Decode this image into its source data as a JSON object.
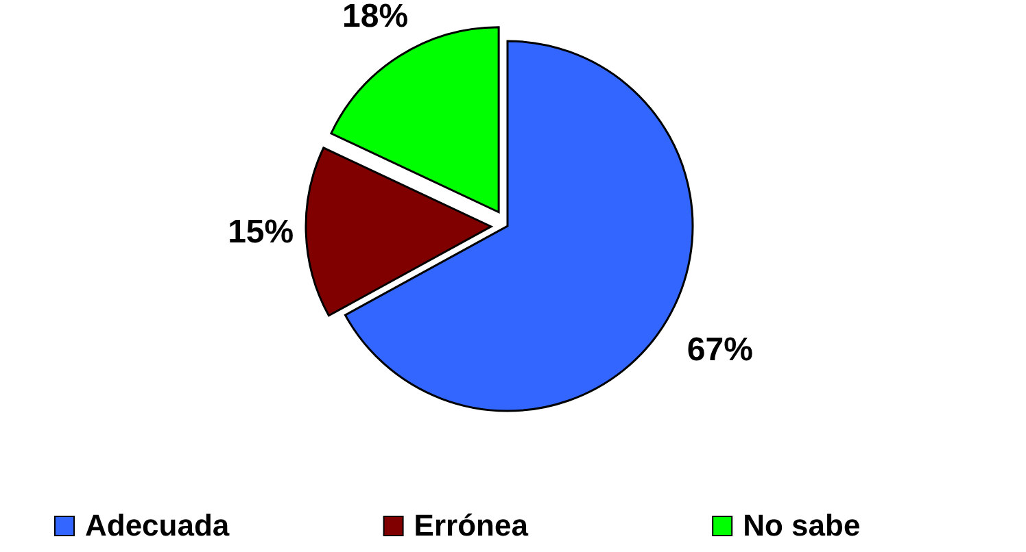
{
  "chart_data": {
    "type": "pie",
    "categories": [
      "Adecuada",
      "Errónea",
      "No sabe"
    ],
    "values": [
      67,
      15,
      18
    ],
    "colors": [
      "#3366ff",
      "#800000",
      "#00ff00"
    ],
    "value_labels": [
      "67%",
      "15%",
      "18%"
    ],
    "legend": "bottom"
  }
}
